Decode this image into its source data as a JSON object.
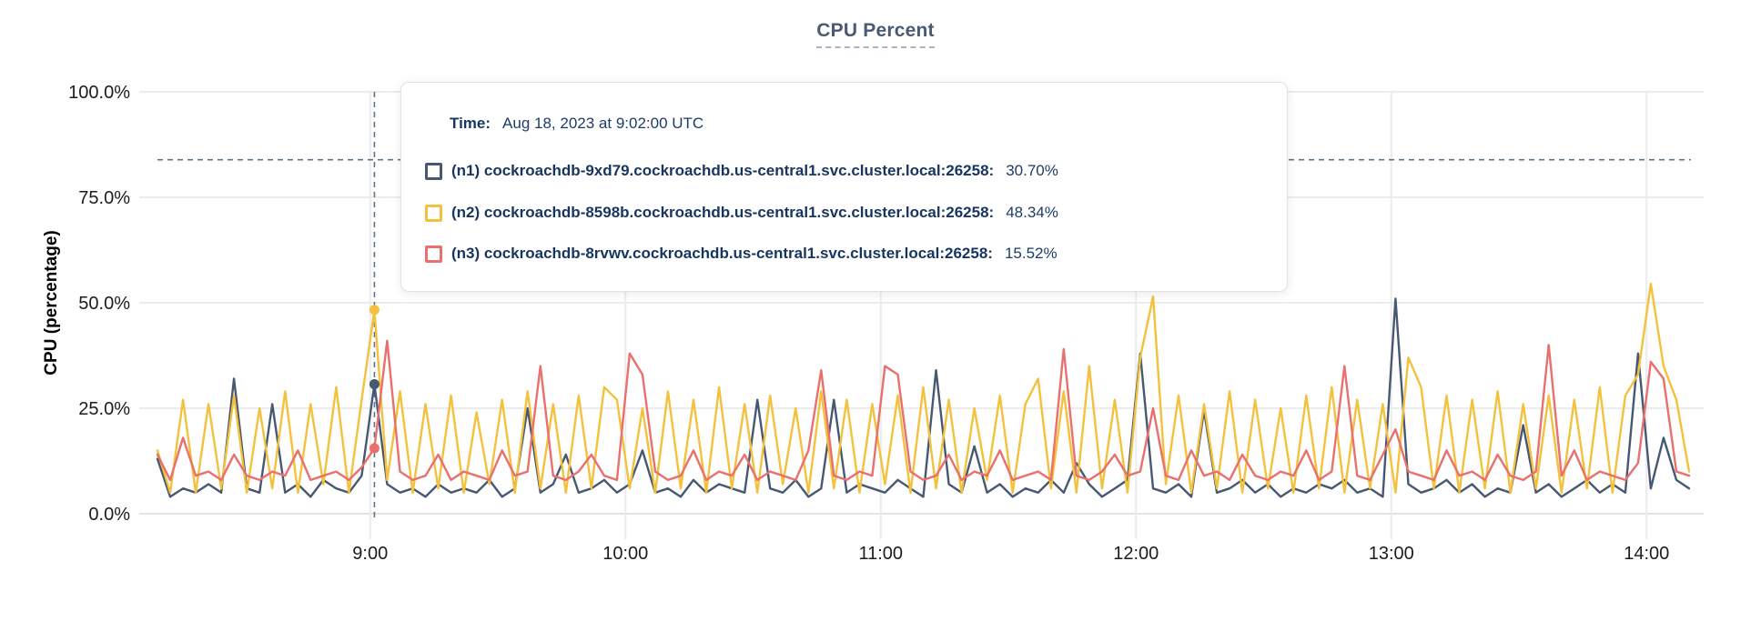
{
  "title": "CPU Percent",
  "y_axis": {
    "label": "CPU (percentage)",
    "ticks": [
      "100.0%",
      "75.0%",
      "50.0%",
      "25.0%",
      "0.0%"
    ]
  },
  "x_axis": {
    "ticks": [
      "9:00",
      "10:00",
      "11:00",
      "12:00",
      "13:00",
      "14:00"
    ]
  },
  "tooltip": {
    "time_label": "Time:",
    "time_value": "Aug 18, 2023 at 9:02:00 UTC",
    "rows": [
      {
        "name": "(n1) cockroachdb-9xd79.cockroachdb.us-central1.svc.cluster.local:26258:",
        "value": "30.70%",
        "color": "#475872"
      },
      {
        "name": "(n2) cockroachdb-8598b.cockroachdb.us-central1.svc.cluster.local:26258:",
        "value": "48.34%",
        "color": "#f4c13c"
      },
      {
        "name": "(n3) cockroachdb-8rvwv.cockroachdb.us-central1.svc.cluster.local:26258:",
        "value": "15.52%",
        "color": "#e9706c"
      }
    ]
  },
  "colors": {
    "n1": "#475872",
    "n2": "#f4c13c",
    "n3": "#e9706c",
    "crosshair": "#5d7389",
    "gridline": "#ececec",
    "baseline": "#e3e3e3",
    "axis_text": "#1c1c1c",
    "title_text": "#4a5a73"
  },
  "chart_data": {
    "type": "line",
    "title": "CPU Percent",
    "xlabel": "",
    "ylabel": "CPU (percentage)",
    "ylim": [
      0,
      100
    ],
    "grid": true,
    "legend_position": "tooltip-overlay",
    "x_start_time": "8:10",
    "x_end_time": "14:10",
    "step_minutes": 3,
    "x_ticks_min": [
      50,
      110,
      170,
      230,
      290,
      350
    ],
    "y_ticks_pct": [
      100,
      75,
      50,
      25,
      0
    ],
    "hover": {
      "index": 17,
      "time": "Aug 18, 2023 at 9:02:00 UTC",
      "cursor_pct": 83.9,
      "values": [
        30.7,
        48.34,
        15.52
      ]
    },
    "series": [
      {
        "name": "(n1) cockroachdb-9xd79.cockroachdb.us-central1.svc.cluster.local:26258",
        "color": "#475872",
        "values": [
          13,
          4,
          6,
          5,
          7,
          5,
          32,
          6,
          5,
          26,
          5,
          7,
          4,
          8,
          6,
          5,
          9,
          30.7,
          7,
          5,
          6,
          4,
          7,
          5,
          6,
          5,
          8,
          4,
          6,
          25,
          5,
          7,
          14,
          5,
          6,
          8,
          5,
          7,
          15,
          5,
          6,
          4,
          8,
          5,
          7,
          6,
          5,
          27,
          6,
          5,
          8,
          4,
          6,
          27,
          5,
          7,
          6,
          5,
          8,
          6,
          4,
          34,
          7,
          5,
          16,
          5,
          7,
          4,
          6,
          5,
          8,
          5,
          12,
          7,
          4,
          6,
          8,
          38,
          6,
          5,
          7,
          4,
          24.5,
          5,
          6,
          8,
          5,
          7,
          4,
          6,
          5,
          7,
          6,
          8,
          5,
          6,
          4,
          51,
          7,
          5,
          6,
          8,
          5,
          7,
          4,
          6,
          5,
          21,
          5,
          7,
          4,
          6,
          8,
          5,
          7,
          5,
          38,
          6,
          18,
          8,
          6
        ]
      },
      {
        "name": "(n2) cockroachdb-8598b.cockroachdb.us-central1.svc.cluster.local:26258",
        "color": "#f4c13c",
        "values": [
          15,
          5,
          27,
          5,
          26,
          6,
          28,
          5,
          25,
          6,
          29,
          5,
          26,
          7,
          30,
          5,
          27,
          48.3,
          8,
          29,
          5,
          26,
          6,
          28,
          5,
          24,
          7,
          27,
          5,
          29,
          6,
          26,
          5,
          28,
          6,
          30,
          27,
          6,
          25,
          5,
          29,
          6,
          27,
          5,
          30,
          6,
          26,
          5,
          28,
          7,
          25,
          5,
          29,
          6,
          27,
          5,
          26,
          7,
          28,
          5,
          30,
          6,
          27,
          5,
          25,
          8,
          28,
          5,
          26,
          32,
          6,
          29,
          5,
          35,
          6,
          27,
          5,
          37,
          51.5,
          7,
          28,
          5,
          26,
          6,
          29,
          5,
          27,
          6,
          25,
          5,
          28,
          6,
          30,
          5,
          27,
          6,
          26,
          5,
          37,
          30,
          6,
          28,
          5,
          27,
          6,
          29,
          5,
          26,
          6,
          28,
          5,
          27,
          6,
          30,
          5,
          28,
          33,
          54.5,
          35,
          27,
          10
        ]
      },
      {
        "name": "(n3) cockroachdb-8rvwv.cockroachdb.us-central1.svc.cluster.local:26258",
        "color": "#e9706c",
        "values": [
          14,
          8,
          18,
          9,
          10,
          8,
          14,
          9,
          8,
          10,
          9,
          15,
          8,
          9,
          10,
          8,
          11,
          15.5,
          41,
          10,
          8,
          9,
          14,
          8,
          10,
          9,
          8,
          15,
          9,
          10,
          35,
          9,
          8,
          10,
          14,
          9,
          8,
          38,
          33,
          10,
          8,
          9,
          15,
          8,
          10,
          9,
          14,
          8,
          10,
          9,
          8,
          15,
          34,
          9,
          8,
          10,
          9,
          35,
          33,
          10,
          8,
          9,
          14,
          8,
          10,
          9,
          15,
          8,
          9,
          10,
          8,
          39,
          9,
          8,
          10,
          14,
          9,
          10,
          25,
          9,
          8,
          15,
          9,
          10,
          8,
          14,
          9,
          8,
          10,
          9,
          15,
          8,
          10,
          35,
          9,
          8,
          14,
          20,
          10,
          9,
          8,
          15,
          9,
          10,
          8,
          14,
          9,
          8,
          10,
          40,
          9,
          15,
          8,
          10,
          9,
          8,
          12,
          36,
          32,
          10,
          9
        ]
      }
    ]
  }
}
